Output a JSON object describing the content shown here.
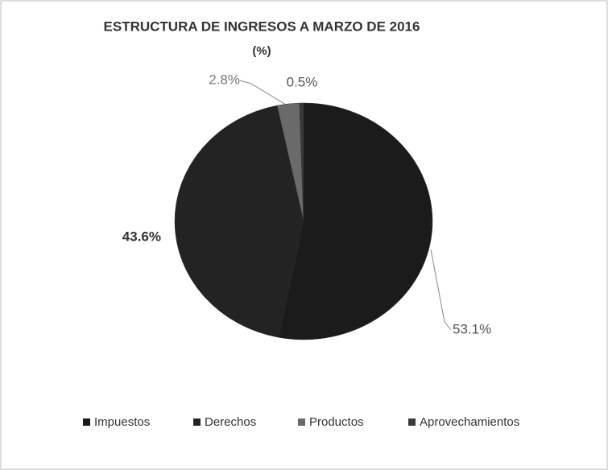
{
  "chart_data": {
    "type": "pie",
    "title": "ESTRUCTURA DE INGRESOS A MARZO DE 2016",
    "subtitle": "(%)",
    "categories": [
      "Impuestos",
      "Derechos",
      "Productos",
      "Aprovechamientos"
    ],
    "values": [
      53.1,
      43.6,
      2.8,
      0.5
    ],
    "value_labels": [
      "53.1%",
      "43.6%",
      "2.8%",
      "0.5%"
    ],
    "colors": [
      "#1b1b1b",
      "#232323",
      "#6a6a6a",
      "#3a3a3a"
    ],
    "legend": "bottom"
  }
}
